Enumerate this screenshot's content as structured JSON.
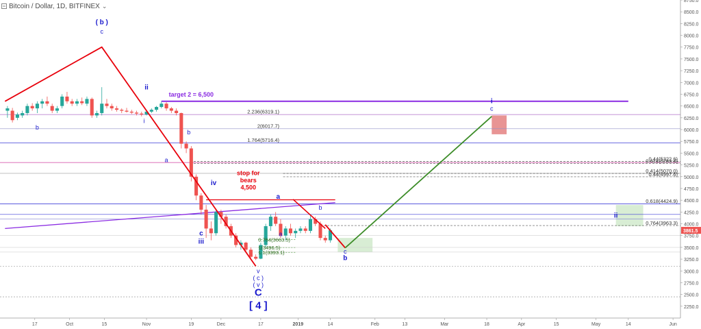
{
  "header": {
    "symbol_label": "Bitcoin / Dollar, 1D, BITFINEX",
    "chevron_glyph": "⌄"
  },
  "colors": {
    "candle_up": "#26a69a",
    "candle_down": "#ef5350",
    "red_wave": "#e8000b",
    "green_projection": "#3c8c28",
    "purple_line": "#8a2be2",
    "blue_line": "#3c3cd8",
    "wave_label": "#1a1acd",
    "price_badge": "#ef5350",
    "green_box": "#a8d8a0",
    "red_box": "#e07070"
  },
  "chart_data": {
    "type": "candlestick",
    "title": "Bitcoin / Dollar, 1D, BITFINEX",
    "ylim": [
      2000,
      8750
    ],
    "yticks": [
      2250,
      2500,
      2750,
      3000,
      3250,
      3500,
      3750,
      4000,
      4250,
      4500,
      4750,
      5000,
      5250,
      5500,
      5750,
      6000,
      6250,
      6500,
      6750,
      7000,
      7250,
      7500,
      7750,
      8000,
      8250,
      8500,
      8750
    ],
    "ytick_labels": [
      "2250.0",
      "2500.0",
      "2750.0",
      "3000.0",
      "3250.0",
      "3500.0",
      "3750.0",
      "4000.0",
      "4250.0",
      "4500.0",
      "4750.0",
      "5000.0",
      "5250.0",
      "5500.0",
      "5750.0",
      "6000.0",
      "6250.0",
      "6500.0",
      "6750.0",
      "7000.0",
      "7250.0",
      "7500.0",
      "7750.0",
      "8000.0",
      "8250.0",
      "8500.0",
      "8750.0"
    ],
    "xticks": [
      {
        "date": "2018-09-17",
        "label": "17"
      },
      {
        "date": "2018-10-01",
        "label": "Oct"
      },
      {
        "date": "2018-10-15",
        "label": "15"
      },
      {
        "date": "2018-11-01",
        "label": "Nov"
      },
      {
        "date": "2018-11-19",
        "label": "19"
      },
      {
        "date": "2018-12-01",
        "label": "Dec"
      },
      {
        "date": "2018-12-17",
        "label": "17"
      },
      {
        "date": "2019-01-01",
        "label": "2019"
      },
      {
        "date": "2019-01-14",
        "label": "14"
      },
      {
        "date": "2019-02-01",
        "label": "Feb"
      },
      {
        "date": "2019-02-13",
        "label": "13"
      },
      {
        "date": "2019-03-01",
        "label": "Mar"
      },
      {
        "date": "2019-03-18",
        "label": "18"
      },
      {
        "date": "2019-04-01",
        "label": "Apr"
      },
      {
        "date": "2019-04-15",
        "label": "15"
      },
      {
        "date": "2019-05-01",
        "label": "May"
      },
      {
        "date": "2019-05-14",
        "label": "14"
      },
      {
        "date": "2019-06-01",
        "label": "Jun"
      }
    ],
    "last_price_label": "3861.5",
    "candles": [
      {
        "t": "2018-09-06",
        "o": 6400,
        "h": 6500,
        "l": 6250,
        "c": 6450
      },
      {
        "t": "2018-09-08",
        "o": 6400,
        "h": 6460,
        "l": 6150,
        "c": 6200
      },
      {
        "t": "2018-09-10",
        "o": 6250,
        "h": 6360,
        "l": 6200,
        "c": 6320
      },
      {
        "t": "2018-09-12",
        "o": 6300,
        "h": 6400,
        "l": 6250,
        "c": 6350
      },
      {
        "t": "2018-09-14",
        "o": 6350,
        "h": 6550,
        "l": 6300,
        "c": 6500
      },
      {
        "t": "2018-09-16",
        "o": 6500,
        "h": 6560,
        "l": 6400,
        "c": 6450
      },
      {
        "t": "2018-09-18",
        "o": 6450,
        "h": 6600,
        "l": 6350,
        "c": 6550
      },
      {
        "t": "2018-09-20",
        "o": 6550,
        "h": 6650,
        "l": 6450,
        "c": 6600
      },
      {
        "t": "2018-09-22",
        "o": 6600,
        "h": 6700,
        "l": 6500,
        "c": 6550
      },
      {
        "t": "2018-09-24",
        "o": 6500,
        "h": 6550,
        "l": 6350,
        "c": 6400
      },
      {
        "t": "2018-09-26",
        "o": 6400,
        "h": 6500,
        "l": 6350,
        "c": 6450
      },
      {
        "t": "2018-09-28",
        "o": 6500,
        "h": 6750,
        "l": 6450,
        "c": 6700
      },
      {
        "t": "2018-09-30",
        "o": 6700,
        "h": 6800,
        "l": 6550,
        "c": 6600
      },
      {
        "t": "2018-10-02",
        "o": 6600,
        "h": 6650,
        "l": 6500,
        "c": 6550
      },
      {
        "t": "2018-10-04",
        "o": 6550,
        "h": 6650,
        "l": 6500,
        "c": 6600
      },
      {
        "t": "2018-10-06",
        "o": 6600,
        "h": 6680,
        "l": 6520,
        "c": 6560
      },
      {
        "t": "2018-10-08",
        "o": 6550,
        "h": 6700,
        "l": 6500,
        "c": 6650
      },
      {
        "t": "2018-10-10",
        "o": 6650,
        "h": 6680,
        "l": 6250,
        "c": 6300
      },
      {
        "t": "2018-10-12",
        "o": 6300,
        "h": 6400,
        "l": 6250,
        "c": 6350
      },
      {
        "t": "2018-10-14",
        "o": 6350,
        "h": 6900,
        "l": 6300,
        "c": 6550
      },
      {
        "t": "2018-10-16",
        "o": 6550,
        "h": 6650,
        "l": 6450,
        "c": 6500
      },
      {
        "t": "2018-10-18",
        "o": 6500,
        "h": 6550,
        "l": 6400,
        "c": 6450
      },
      {
        "t": "2018-10-20",
        "o": 6450,
        "h": 6500,
        "l": 6380,
        "c": 6420
      },
      {
        "t": "2018-10-22",
        "o": 6420,
        "h": 6450,
        "l": 6350,
        "c": 6400
      },
      {
        "t": "2018-10-24",
        "o": 6400,
        "h": 6460,
        "l": 6360,
        "c": 6380
      },
      {
        "t": "2018-10-26",
        "o": 6380,
        "h": 6420,
        "l": 6330,
        "c": 6360
      },
      {
        "t": "2018-10-28",
        "o": 6360,
        "h": 6400,
        "l": 6300,
        "c": 6340
      },
      {
        "t": "2018-10-30",
        "o": 6340,
        "h": 6380,
        "l": 6280,
        "c": 6320
      },
      {
        "t": "2018-11-01",
        "o": 6320,
        "h": 6400,
        "l": 6300,
        "c": 6380
      },
      {
        "t": "2018-11-03",
        "o": 6380,
        "h": 6450,
        "l": 6350,
        "c": 6420
      },
      {
        "t": "2018-11-05",
        "o": 6420,
        "h": 6500,
        "l": 6380,
        "c": 6480
      },
      {
        "t": "2018-11-07",
        "o": 6480,
        "h": 6600,
        "l": 6450,
        "c": 6550
      },
      {
        "t": "2018-11-09",
        "o": 6550,
        "h": 6580,
        "l": 6400,
        "c": 6450
      },
      {
        "t": "2018-11-11",
        "o": 6450,
        "h": 6480,
        "l": 6350,
        "c": 6400
      },
      {
        "t": "2018-11-13",
        "o": 6400,
        "h": 6450,
        "l": 6300,
        "c": 6350
      },
      {
        "t": "2018-11-15",
        "o": 6350,
        "h": 6360,
        "l": 5600,
        "c": 5700
      },
      {
        "t": "2018-11-17",
        "o": 5700,
        "h": 5750,
        "l": 5500,
        "c": 5600
      },
      {
        "t": "2018-11-19",
        "o": 5600,
        "h": 5650,
        "l": 4900,
        "c": 5000
      },
      {
        "t": "2018-11-21",
        "o": 5000,
        "h": 5050,
        "l": 4500,
        "c": 4600
      },
      {
        "t": "2018-11-23",
        "o": 4600,
        "h": 4650,
        "l": 4200,
        "c": 4300
      },
      {
        "t": "2018-11-25",
        "o": 4300,
        "h": 4400,
        "l": 3700,
        "c": 3900
      },
      {
        "t": "2018-11-27",
        "o": 3900,
        "h": 4050,
        "l": 3650,
        "c": 3800
      },
      {
        "t": "2018-11-29",
        "o": 3800,
        "h": 4300,
        "l": 3750,
        "c": 4250
      },
      {
        "t": "2018-12-01",
        "o": 4250,
        "h": 4300,
        "l": 4000,
        "c": 4150
      },
      {
        "t": "2018-12-03",
        "o": 4150,
        "h": 4200,
        "l": 3900,
        "c": 3950
      },
      {
        "t": "2018-12-05",
        "o": 3950,
        "h": 4000,
        "l": 3700,
        "c": 3750
      },
      {
        "t": "2018-12-07",
        "o": 3750,
        "h": 3800,
        "l": 3500,
        "c": 3550
      },
      {
        "t": "2018-12-09",
        "o": 3550,
        "h": 3650,
        "l": 3450,
        "c": 3600
      },
      {
        "t": "2018-12-11",
        "o": 3600,
        "h": 3620,
        "l": 3400,
        "c": 3450
      },
      {
        "t": "2018-12-13",
        "o": 3450,
        "h": 3500,
        "l": 3280,
        "c": 3300
      },
      {
        "t": "2018-12-15",
        "o": 3300,
        "h": 3350,
        "l": 3230,
        "c": 3260
      },
      {
        "t": "2018-12-17",
        "o": 3260,
        "h": 3600,
        "l": 3250,
        "c": 3550
      },
      {
        "t": "2018-12-19",
        "o": 3550,
        "h": 4000,
        "l": 3500,
        "c": 3950
      },
      {
        "t": "2018-12-21",
        "o": 3950,
        "h": 4200,
        "l": 3850,
        "c": 4150
      },
      {
        "t": "2018-12-23",
        "o": 4150,
        "h": 4250,
        "l": 3950,
        "c": 4000
      },
      {
        "t": "2018-12-25",
        "o": 4000,
        "h": 4100,
        "l": 3700,
        "c": 3750
      },
      {
        "t": "2018-12-27",
        "o": 3750,
        "h": 3950,
        "l": 3650,
        "c": 3900
      },
      {
        "t": "2018-12-29",
        "o": 3900,
        "h": 4000,
        "l": 3750,
        "c": 3800
      },
      {
        "t": "2018-12-31",
        "o": 3800,
        "h": 3900,
        "l": 3700,
        "c": 3850
      },
      {
        "t": "2019-01-02",
        "o": 3850,
        "h": 3950,
        "l": 3800,
        "c": 3900
      },
      {
        "t": "2019-01-04",
        "o": 3900,
        "h": 3950,
        "l": 3800,
        "c": 3850
      },
      {
        "t": "2019-01-06",
        "o": 3850,
        "h": 4200,
        "l": 3800,
        "c": 4100
      },
      {
        "t": "2019-01-08",
        "o": 4100,
        "h": 4150,
        "l": 3950,
        "c": 4000
      },
      {
        "t": "2019-01-10",
        "o": 4000,
        "h": 4050,
        "l": 3650,
        "c": 3700
      },
      {
        "t": "2019-01-12",
        "o": 3700,
        "h": 3750,
        "l": 3600,
        "c": 3650
      },
      {
        "t": "2019-01-14",
        "o": 3650,
        "h": 3900,
        "l": 3600,
        "c": 3861
      }
    ],
    "horizontal_lines": [
      {
        "y": 6600,
        "color": "#8a2be2",
        "width": 2,
        "x_from": "2018-11-07",
        "x_to": "2019-05-14"
      },
      {
        "y": 6319.1,
        "color": "#b070c8",
        "width": 0.8
      },
      {
        "y": 6017.7,
        "color": "#9090c8",
        "width": 0.6
      },
      {
        "y": 5716.4,
        "color": "#3c3cd8",
        "width": 0.8
      },
      {
        "y": 5300,
        "color": "#d040a0",
        "width": 0.8
      },
      {
        "y": 5070,
        "color": "#999999",
        "width": 0.6
      },
      {
        "y": 4424.9,
        "color": "#3c3cd8",
        "width": 0.8
      },
      {
        "y": 4200,
        "color": "#3c3cd8",
        "width": 0.6
      },
      {
        "y": 4100,
        "color": "#8080d0",
        "width": 0.6
      },
      {
        "y": 3750,
        "color": "#d0d0d0",
        "width": 0.6
      },
      {
        "y": 3500,
        "color": "#d0d0d0",
        "width": 0.6
      },
      {
        "y": 3400,
        "color": "#d0d0d0",
        "width": 0.6
      },
      {
        "y": 3100,
        "color": "#888888",
        "width": 0.6,
        "dash": "2,2"
      },
      {
        "y": 2450,
        "color": "#888888",
        "width": 0.6,
        "dash": "2,2"
      }
    ],
    "dashed_levels": [
      {
        "y": 5322.6,
        "label": "0.44(5322.6)",
        "x_from": "2018-11-20"
      },
      {
        "y": 5283.4,
        "label": "0.414(5283.4)",
        "x_from": "2018-11-20"
      },
      {
        "y": 5070.0,
        "label": "0.414(5070.0)",
        "x_from": "2018-12-26"
      },
      {
        "y": 4997.6,
        "label": "0.44(4997.6)",
        "x_from": "2018-12-26"
      },
      {
        "y": 3963.3,
        "label": "0.764(3963.3)",
        "x_from": "2019-01-10"
      }
    ],
    "fib_labels": [
      {
        "y": 6319.1,
        "label": "2.236(6319.1)"
      },
      {
        "y": 6017.7,
        "label": "2(6017.7)"
      },
      {
        "y": 5716.4,
        "label": "1.764(5716.4)"
      },
      {
        "y": 4424.9,
        "label": "0.618(4424.9)"
      }
    ],
    "small_fib_labels": [
      {
        "y": 3663.5,
        "label": "0.764(3663.5)"
      },
      {
        "y": 3496.5,
        "label": "1(3496.5)"
      },
      {
        "y": 3393.1,
        "label": "1.1(3393.1)"
      }
    ],
    "red_wave": [
      {
        "t": "2018-09-05",
        "v": 6600
      },
      {
        "t": "2018-10-14",
        "v": 7750
      },
      {
        "t": "2018-12-15",
        "v": 3100
      }
    ],
    "red_wave_2": [
      {
        "t": "2018-12-30",
        "v": 4520
      },
      {
        "t": "2019-01-12",
        "v": 3900
      }
    ],
    "red_wave_3": [
      {
        "t": "2019-01-12",
        "v": 3980
      },
      {
        "t": "2019-01-20",
        "v": 3490
      }
    ],
    "green_projection": [
      {
        "t": "2019-01-20",
        "v": 3490
      },
      {
        "t": "2019-03-20",
        "v": 6280
      }
    ],
    "purple_trend": [
      {
        "t": "2018-09-05",
        "v": 3900
      },
      {
        "t": "2019-01-16",
        "v": 4450
      }
    ],
    "red_stop_line": [
      {
        "t": "2018-11-25",
        "v": 4510
      },
      {
        "t": "2019-01-16",
        "v": 4510
      }
    ],
    "boxes": [
      {
        "t1": "2019-01-17",
        "t2": "2019-01-31",
        "v1": 3400,
        "v2": 3700,
        "kind": "green"
      },
      {
        "t1": "2019-03-20",
        "t2": "2019-03-26",
        "v1": 5900,
        "v2": 6300,
        "kind": "red"
      },
      {
        "t1": "2019-05-09",
        "t2": "2019-05-20",
        "v1": 3950,
        "v2": 4400,
        "kind": "green"
      }
    ],
    "annotations": [
      {
        "t": "2018-10-14",
        "v": 8230,
        "text": "( b )",
        "kind": "wave_bold"
      },
      {
        "t": "2018-10-14",
        "v": 8040,
        "text": "c",
        "kind": "wave_small"
      },
      {
        "t": "2018-09-18",
        "v": 6000,
        "text": "b",
        "kind": "wave_small"
      },
      {
        "t": "2018-11-01",
        "v": 6850,
        "text": "ii",
        "kind": "wave_bold"
      },
      {
        "t": "2018-10-31",
        "v": 6140,
        "text": "i",
        "kind": "wave_small"
      },
      {
        "t": "2018-11-10",
        "v": 6700,
        "text": "target 2 = 6,500",
        "kind": "target"
      },
      {
        "t": "2018-11-18",
        "v": 5900,
        "text": "b",
        "kind": "wave_small"
      },
      {
        "t": "2018-11-09",
        "v": 5310,
        "text": "a",
        "kind": "wave_small"
      },
      {
        "t": "2018-11-28",
        "v": 4820,
        "text": "iv",
        "kind": "wave_bold_small"
      },
      {
        "t": "2018-12-12",
        "v": 5030,
        "text": "stop for",
        "kind": "stop"
      },
      {
        "t": "2018-12-12",
        "v": 4880,
        "text": "bears",
        "kind": "stop"
      },
      {
        "t": "2018-12-12",
        "v": 4730,
        "text": "4,500",
        "kind": "stop"
      },
      {
        "t": "2018-11-23",
        "v": 3750,
        "text": "c",
        "kind": "wave_bold_small"
      },
      {
        "t": "2018-11-23",
        "v": 3580,
        "text": "iii",
        "kind": "wave_bold_small"
      },
      {
        "t": "2018-12-16",
        "v": 2950,
        "text": "v",
        "kind": "wave_small"
      },
      {
        "t": "2018-12-16",
        "v": 2810,
        "text": "( c )",
        "kind": "wave_small"
      },
      {
        "t": "2018-12-16",
        "v": 2660,
        "text": "( v )",
        "kind": "wave_small"
      },
      {
        "t": "2018-12-16",
        "v": 2470,
        "text": "C",
        "kind": "wave_big"
      },
      {
        "t": "2018-12-16",
        "v": 2200,
        "text": "[ 4 ]",
        "kind": "wave_big"
      },
      {
        "t": "2018-12-24",
        "v": 4530,
        "text": "a",
        "kind": "wave_bold_small"
      },
      {
        "t": "2018-12-25",
        "v": 3740,
        "text": "a",
        "kind": "wave_small"
      },
      {
        "t": "2019-01-10",
        "v": 4300,
        "text": "b",
        "kind": "wave_small"
      },
      {
        "t": "2019-01-20",
        "v": 3370,
        "text": "c",
        "kind": "wave_small"
      },
      {
        "t": "2019-01-20",
        "v": 3230,
        "text": "b",
        "kind": "wave_bold_small"
      },
      {
        "t": "2019-03-20",
        "v": 6560,
        "text": "i",
        "kind": "wave_bold_small"
      },
      {
        "t": "2019-03-20",
        "v": 6400,
        "text": "c",
        "kind": "wave_small"
      },
      {
        "t": "2019-05-09",
        "v": 4130,
        "text": "ii",
        "kind": "wave_bold_small"
      }
    ]
  }
}
